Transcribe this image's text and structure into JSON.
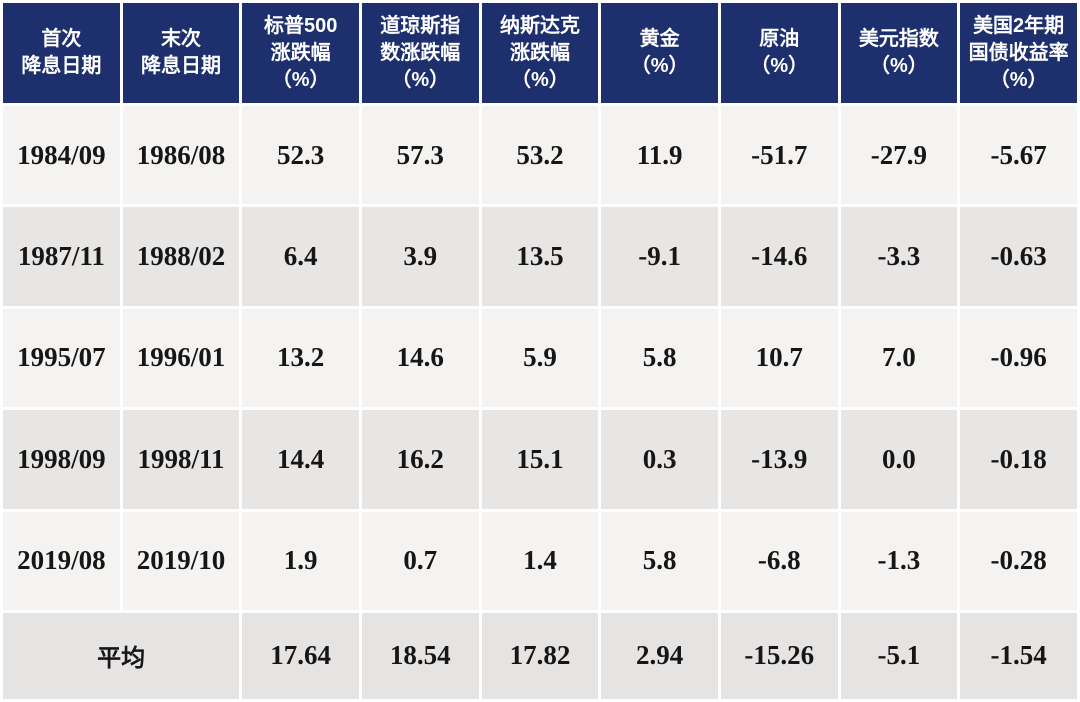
{
  "chart_data": {
    "type": "table",
    "columns": [
      "首次\n降息日期",
      "末次\n降息日期",
      "标普500\n涨跌幅\n（%）",
      "道琼斯指\n数涨跌幅\n（%）",
      "纳斯达克\n涨跌幅\n（%）",
      "黄金\n（%）",
      "原油\n（%）",
      "美元指数\n（%）",
      "美国2年期\n国债收益率\n（%）"
    ],
    "rows": [
      [
        "1984/09",
        "1986/08",
        "52.3",
        "57.3",
        "53.2",
        "11.9",
        "-51.7",
        "-27.9",
        "-5.67"
      ],
      [
        "1987/11",
        "1988/02",
        "6.4",
        "3.9",
        "13.5",
        "-9.1",
        "-14.6",
        "-3.3",
        "-0.63"
      ],
      [
        "1995/07",
        "1996/01",
        "13.2",
        "14.6",
        "5.9",
        "5.8",
        "10.7",
        "7.0",
        "-0.96"
      ],
      [
        "1998/09",
        "1998/11",
        "14.4",
        "16.2",
        "15.1",
        "0.3",
        "-13.9",
        "0.0",
        "-0.18"
      ],
      [
        "2019/08",
        "2019/10",
        "1.9",
        "0.7",
        "1.4",
        "5.8",
        "-6.8",
        "-1.3",
        "-0.28"
      ]
    ],
    "average_label": "平均",
    "average_values": [
      "17.64",
      "18.54",
      "17.82",
      "2.94",
      "-15.26",
      "-5.1",
      "-1.54"
    ]
  },
  "colors": {
    "header_bg": "#1e2f6e",
    "header_text": "#ffffff",
    "row_light_bg": "#f4f3f2",
    "row_dark_bg": "#e8e6e5",
    "average_row_bg": "#e6e4e3",
    "cell_text": "#161616",
    "gap": "#ffffff"
  }
}
